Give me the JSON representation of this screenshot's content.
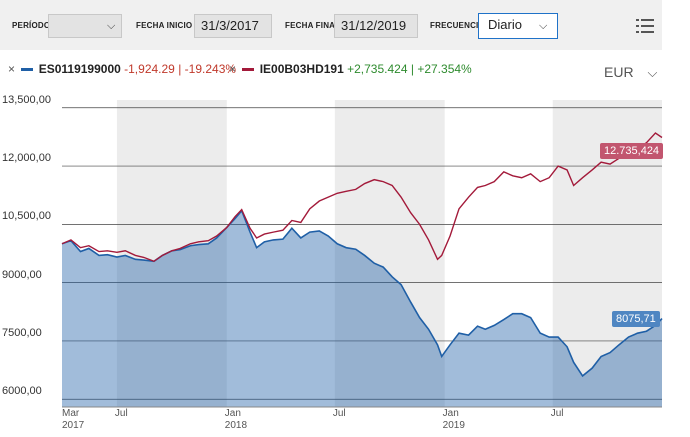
{
  "toolbar": {
    "periodo_label": "PERÍODO",
    "periodo_value": "",
    "fecha_inicio_label": "FECHA INICIO",
    "fecha_inicio_value": "31/3/2017",
    "fecha_final_label": "FECHA FINAL",
    "fecha_final_value": "31/12/2019",
    "frecuencia_label": "FRECUENCIA",
    "frecuencia_value": "Diario"
  },
  "legend": [
    {
      "close": "×",
      "code": "ES0119199000",
      "change": "-1,924.29",
      "sep": "|",
      "pct": "-19.243%",
      "color": "#1f5fa6"
    },
    {
      "close": "×",
      "code": "IE00B03HD191",
      "change": "+2,735.424",
      "sep": "|",
      "pct": "+27.354%",
      "color": "#a31a3a"
    }
  ],
  "currency": "EUR",
  "icons": {
    "menu": "hamburger-menu-icon",
    "chevron": "chevron-down-icon",
    "close": "close-icon"
  },
  "chart_data": {
    "type": "area",
    "x": [
      "2017-03-31",
      "2017-04-15",
      "2017-05-01",
      "2017-05-15",
      "2017-06-01",
      "2017-06-15",
      "2017-07-01",
      "2017-07-15",
      "2017-08-01",
      "2017-08-15",
      "2017-09-01",
      "2017-09-15",
      "2017-10-01",
      "2017-10-15",
      "2017-11-01",
      "2017-11-15",
      "2017-12-01",
      "2017-12-15",
      "2018-01-01",
      "2018-01-15",
      "2018-01-26",
      "2018-02-09",
      "2018-02-20",
      "2018-03-05",
      "2018-03-20",
      "2018-04-05",
      "2018-04-20",
      "2018-05-05",
      "2018-05-20",
      "2018-06-05",
      "2018-06-20",
      "2018-07-05",
      "2018-07-20",
      "2018-08-05",
      "2018-08-20",
      "2018-09-05",
      "2018-09-20",
      "2018-10-05",
      "2018-10-20",
      "2018-11-05",
      "2018-11-20",
      "2018-12-05",
      "2018-12-20",
      "2018-12-27",
      "2019-01-10",
      "2019-01-25",
      "2019-02-10",
      "2019-02-25",
      "2019-03-10",
      "2019-03-25",
      "2019-04-10",
      "2019-04-25",
      "2019-05-10",
      "2019-05-25",
      "2019-06-10",
      "2019-06-25",
      "2019-07-10",
      "2019-07-25",
      "2019-08-05",
      "2019-08-20",
      "2019-09-05",
      "2019-09-20",
      "2019-10-05",
      "2019-10-20",
      "2019-11-05",
      "2019-11-20",
      "2019-12-05",
      "2019-12-20",
      "2019-12-31"
    ],
    "series": [
      {
        "name": "ES0119199000",
        "color": "#1f5fa6",
        "values": [
          10000,
          10080,
          9800,
          9880,
          9700,
          9720,
          9660,
          9700,
          9600,
          9580,
          9550,
          9700,
          9820,
          9850,
          9950,
          9980,
          10000,
          10150,
          10420,
          10650,
          10850,
          10300,
          9900,
          10050,
          10100,
          10120,
          10400,
          10150,
          10300,
          10330,
          10200,
          10000,
          9900,
          9860,
          9700,
          9500,
          9400,
          9150,
          8950,
          8500,
          8100,
          7800,
          7400,
          7100,
          7400,
          7700,
          7650,
          7880,
          7800,
          7900,
          8050,
          8200,
          8200,
          8100,
          7700,
          7600,
          7600,
          7350,
          6950,
          6600,
          6800,
          7100,
          7200,
          7400,
          7600,
          7700,
          7750,
          7900,
          8075.71
        ]
      },
      {
        "name": "IE00B03HD191",
        "color": "#a31a3a",
        "values": [
          10000,
          10100,
          9900,
          9950,
          9800,
          9820,
          9780,
          9820,
          9700,
          9650,
          9550,
          9700,
          9820,
          9880,
          10000,
          10050,
          10080,
          10200,
          10420,
          10700,
          10880,
          10400,
          10150,
          10250,
          10300,
          10350,
          10600,
          10550,
          10900,
          11100,
          11200,
          11300,
          11350,
          11400,
          11550,
          11650,
          11600,
          11500,
          11200,
          10800,
          10500,
          10100,
          9600,
          9700,
          10200,
          10900,
          11200,
          11450,
          11500,
          11600,
          11850,
          11750,
          11700,
          11800,
          11600,
          11700,
          12000,
          11900,
          11500,
          11700,
          11900,
          12100,
          12050,
          12200,
          12350,
          12450,
          12600,
          12850,
          12735.424
        ]
      }
    ],
    "yticks": [
      "13,500,00",
      "12,000,00",
      "10,500,00",
      "9000,00",
      "7500,00",
      "6000,00"
    ],
    "ylim": [
      5800,
      13700
    ],
    "xticks": [
      {
        "label": "Mar",
        "sub": "2017"
      },
      {
        "label": "Jul",
        "sub": ""
      },
      {
        "label": "Jan",
        "sub": "2018"
      },
      {
        "label": "Jul",
        "sub": ""
      },
      {
        "label": "Jan",
        "sub": "2019"
      },
      {
        "label": "Jul",
        "sub": ""
      }
    ],
    "end_labels": [
      "8075,71",
      "12.735,424"
    ],
    "grid": true
  }
}
